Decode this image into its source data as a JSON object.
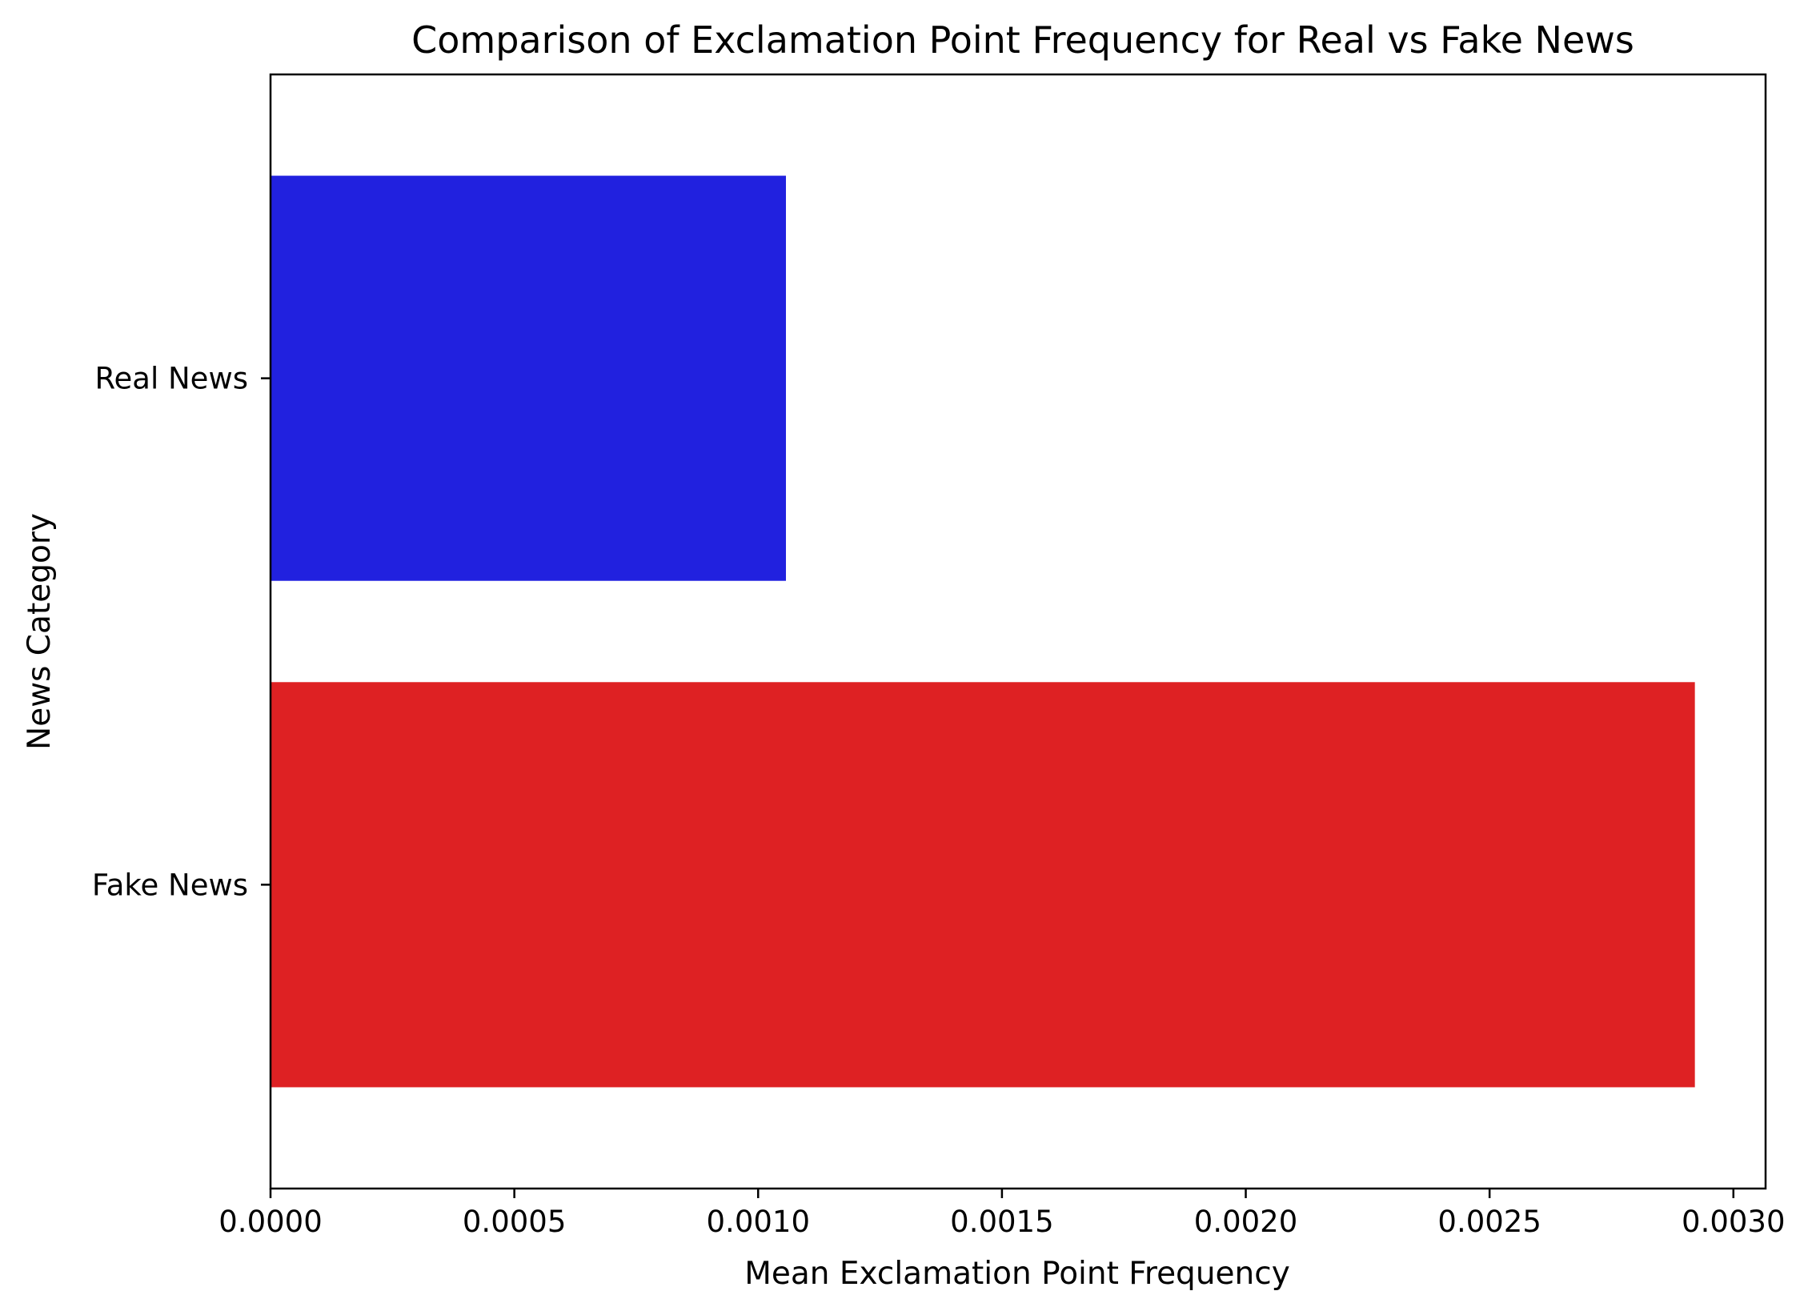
{
  "chart_data": {
    "type": "bar",
    "orientation": "horizontal",
    "title": "Comparison of Exclamation Point Frequency for Real vs Fake News",
    "xlabel": "Mean Exclamation Point Frequency",
    "ylabel": "News Category",
    "categories": [
      "Real News",
      "Fake News"
    ],
    "values": [
      0.001057,
      0.002921
    ],
    "colors": [
      "#2121df",
      "#de2123"
    ],
    "xlim": [
      0,
      0.003066
    ],
    "xticks": [
      0,
      0.0005,
      0.001,
      0.0015,
      0.002,
      0.0025,
      0.003
    ],
    "xtick_labels": [
      "0.0000",
      "0.0005",
      "0.0010",
      "0.0015",
      "0.0020",
      "0.0025",
      "0.0030"
    ],
    "grid": false,
    "legend": "none"
  }
}
